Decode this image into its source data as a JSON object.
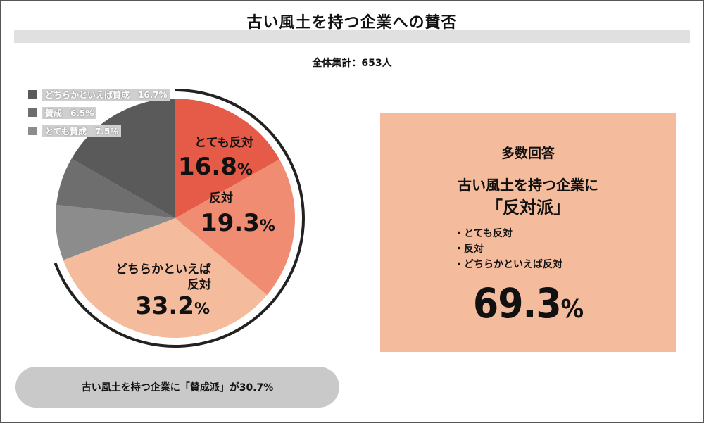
{
  "title": "古い風土を持つ企業への賛否",
  "subtitle": "全体集計：653人",
  "legend": [
    {
      "label": "どちらかといえば賛成　16.7%",
      "color": "#5a5a5a"
    },
    {
      "label": "賛成　6.5%",
      "color": "#6e6e6e"
    },
    {
      "label": "とても賛成　7.5%",
      "color": "#8c8c8c"
    }
  ],
  "chart_data": {
    "type": "pie",
    "title": "古い風土を持つ企業への賛否",
    "subtitle": "全体集計：653人",
    "slices": [
      {
        "label": "とても反対",
        "value": 16.8,
        "display": "16.8",
        "color": "#e65b47"
      },
      {
        "label": "反対",
        "value": 19.3,
        "display": "19.3",
        "color": "#ef8c72"
      },
      {
        "label": "どちらかといえば反対",
        "value": 33.2,
        "display": "33.2",
        "color": "#f4bc9c"
      },
      {
        "label": "とても賛成",
        "value": 7.5,
        "display": "7.5",
        "color": "#8c8c8c"
      },
      {
        "label": "賛成",
        "value": 6.5,
        "display": "6.5",
        "color": "#6e6e6e"
      },
      {
        "label": "どちらかといえば賛成",
        "value": 16.7,
        "display": "16.7",
        "color": "#5a5a5a"
      }
    ],
    "unit": "%"
  },
  "answer_box": {
    "heading": "多数回答",
    "line1": "古い風土を持つ企業に",
    "line2": "「反対派」",
    "items": [
      "とても反対",
      "反対",
      "どちらかといえば反対"
    ],
    "total_value": "69.3",
    "total_unit": "%"
  },
  "footer_pill": "古い風土を持つ企業に「賛成派」が30.7%"
}
